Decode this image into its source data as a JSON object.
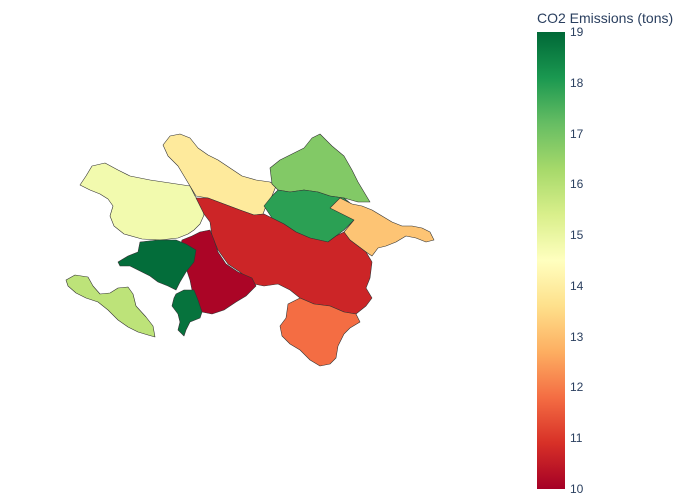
{
  "colorbar": {
    "title": "CO2 Emissions (tons)",
    "min": 10,
    "max": 19,
    "ticks": [
      "10",
      "11",
      "12",
      "13",
      "14",
      "15",
      "16",
      "17",
      "18",
      "19"
    ],
    "colorscale": "RdYlGn",
    "stops": [
      "#a50026",
      "#d73027",
      "#f46d43",
      "#fdae61",
      "#fee08b",
      "#ffffbf",
      "#d9ef8b",
      "#a6d96a",
      "#66bd63",
      "#1a9850",
      "#006837"
    ]
  },
  "chart_data": {
    "type": "choropleth",
    "value_label": "CO2 Emissions (tons)",
    "range": [
      10,
      19
    ],
    "regions": [
      {
        "position": "southwest exclave",
        "value": 15.9
      },
      {
        "position": "west",
        "value": 14.8
      },
      {
        "position": "northwest",
        "value": 13.9
      },
      {
        "position": "north",
        "value": 16.8
      },
      {
        "position": "north-central",
        "value": 17.9
      },
      {
        "position": "east coast",
        "value": 13.1
      },
      {
        "position": "center",
        "value": 10.7
      },
      {
        "position": "west-central",
        "value": 10.1
      },
      {
        "position": "far west",
        "value": 18.9
      },
      {
        "position": "southwest",
        "value": 18.8
      },
      {
        "position": "southeast",
        "value": 11.8
      }
    ]
  }
}
